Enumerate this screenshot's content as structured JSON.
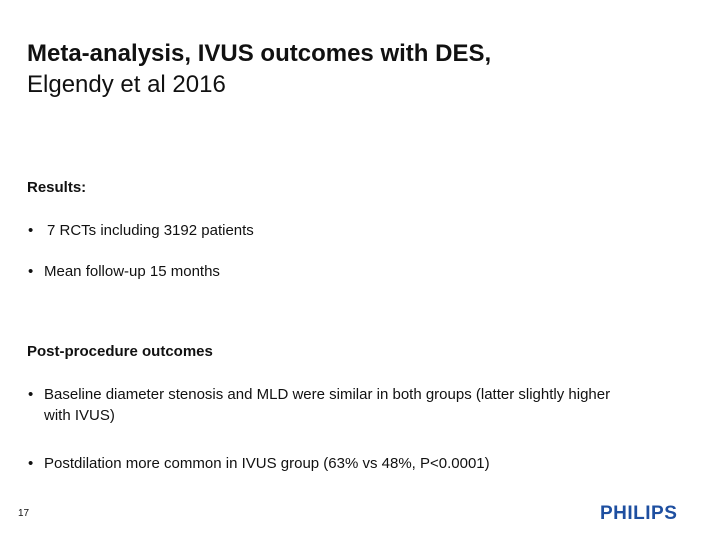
{
  "title": {
    "line1": "Meta-analysis, IVUS outcomes with DES,",
    "line2": "Elgendy et al 2016"
  },
  "results": {
    "heading": "Results:",
    "bullets": [
      "7 RCTs including 3192 patients",
      "Mean follow-up 15 months"
    ]
  },
  "post_procedure": {
    "heading": "Post-procedure outcomes",
    "bullets": [
      "Baseline diameter stenosis and MLD were similar in both groups (latter slightly higher with IVUS)",
      "Postdilation more common in IVUS group (63% vs 48%, P<0.0001)"
    ]
  },
  "footer": {
    "page_number": "17",
    "logo_text": "PHILIPS",
    "logo_color": "#1e4fa0"
  },
  "bullet_glyph": "•"
}
